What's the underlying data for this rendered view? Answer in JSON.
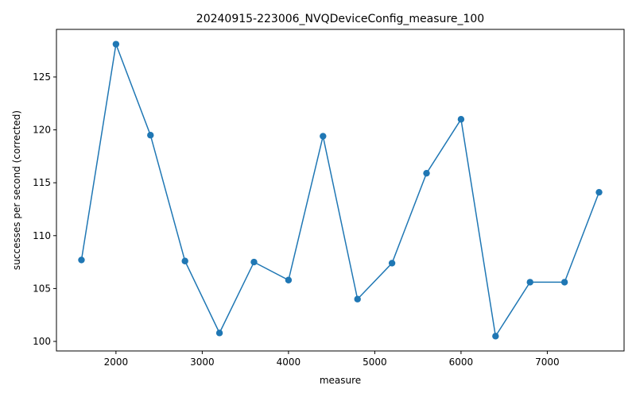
{
  "chart_data": {
    "type": "line",
    "title": "20240915-223006_NVQDeviceConfig_measure_100",
    "xlabel": "measure",
    "ylabel": "successes per second (corrected)",
    "xlim": [
      1310,
      7890
    ],
    "ylim": [
      99.1,
      129.5
    ],
    "xticks": [
      2000,
      3000,
      4000,
      5000,
      6000,
      7000
    ],
    "yticks": [
      100,
      105,
      110,
      115,
      120,
      125
    ],
    "grid": false,
    "color": "#1f77b4",
    "series": [
      {
        "x": [
          1600,
          2000,
          2400,
          2800,
          3200,
          3600,
          4000,
          4400,
          4800,
          5200,
          5600,
          6000,
          6400,
          6800,
          7200,
          7600
        ],
        "y": [
          107.7,
          128.1,
          119.5,
          107.6,
          100.8,
          107.5,
          105.8,
          119.4,
          104.0,
          107.4,
          115.9,
          121.0,
          100.5,
          105.6,
          105.6,
          114.1
        ]
      }
    ]
  }
}
